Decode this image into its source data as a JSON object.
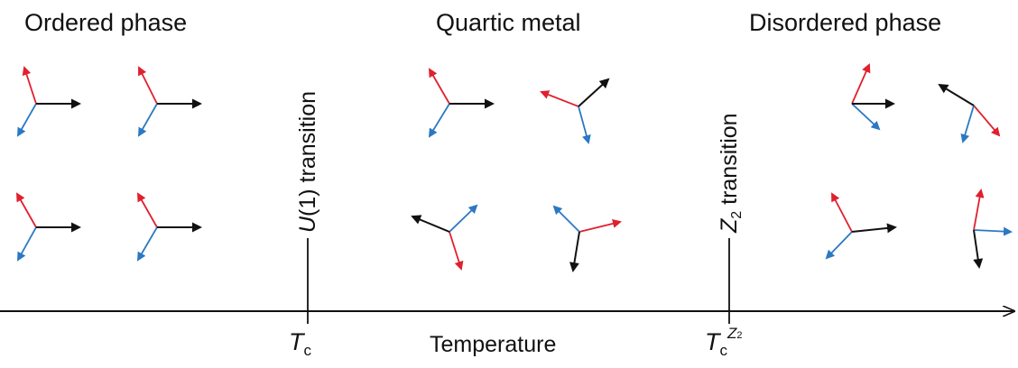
{
  "phases": {
    "ordered": "Ordered phase",
    "quartic": "Quartic metal",
    "disordered": "Disordered phase"
  },
  "transitions": {
    "u1": {
      "prefix": "U",
      "rest": "(1) transition"
    },
    "z2": {
      "prefix": "Z",
      "sub": "2",
      "rest": " transition"
    }
  },
  "axis": {
    "label": "Temperature",
    "tc": {
      "main": "T",
      "sub": "c"
    },
    "tcz2": {
      "main": "T",
      "sub": "c",
      "sup": "Z",
      "supsub": "2"
    }
  },
  "colors": {
    "red": "#e0202e",
    "blue": "#2b78c4",
    "black": "#111111"
  },
  "icons": {
    "spin_triad": "three-arrow-triad-icon"
  }
}
